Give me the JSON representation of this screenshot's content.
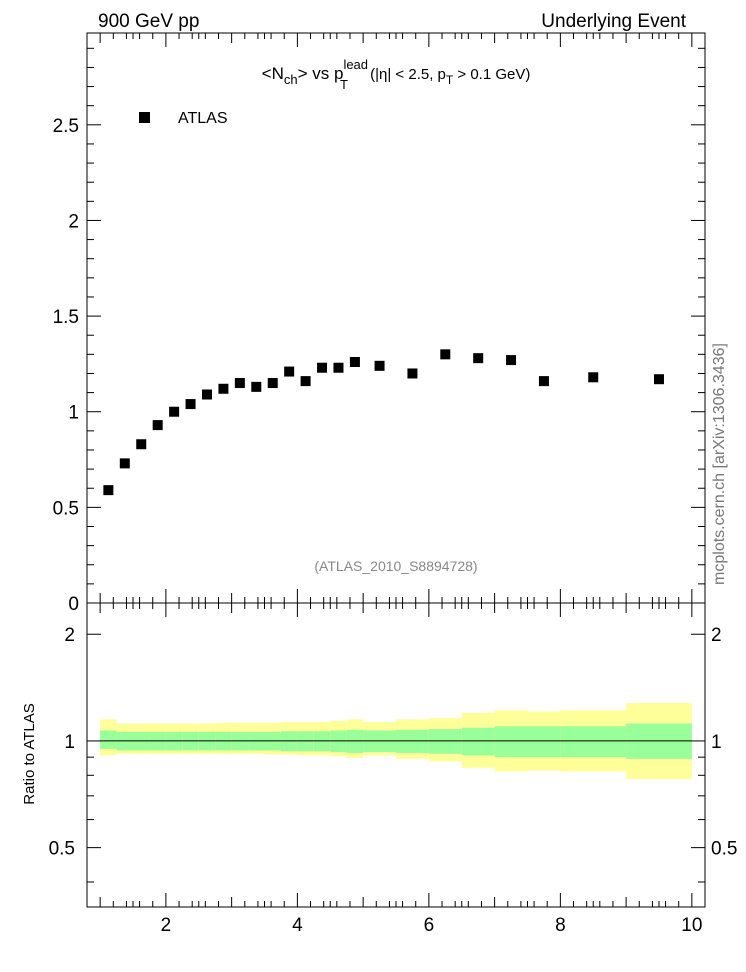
{
  "header": {
    "left": "900 GeV pp",
    "right": "Underlying Event"
  },
  "title": {
    "prefix": "<N",
    "sub1": "ch",
    "middle": "> vs p",
    "sup1": "lead",
    "sub2": "T",
    "rest1": " (|η| < 2.5, p",
    "sub3": "T",
    "rest2": " > 0.1 GeV)"
  },
  "legend": {
    "label": "ATLAS",
    "placement": "top-left"
  },
  "analysis_ref": "(ATLAS_2010_S8894728)",
  "side_label": "mcplots.cern.ch [arXiv:1306.3436]",
  "ratio_ylabel": "Ratio to ATLAS",
  "colors": {
    "marker": "#000000",
    "band_inner": "#99ff99",
    "band_outer": "#ffff99",
    "ref_text": "#888888",
    "side_text": "#777777"
  },
  "chart_data": [
    {
      "type": "scatter",
      "series": [
        {
          "name": "ATLAS",
          "points": [
            {
              "x": 1.125,
              "y": 0.59
            },
            {
              "x": 1.375,
              "y": 0.73
            },
            {
              "x": 1.625,
              "y": 0.83
            },
            {
              "x": 1.875,
              "y": 0.93
            },
            {
              "x": 2.125,
              "y": 1.0
            },
            {
              "x": 2.375,
              "y": 1.04
            },
            {
              "x": 2.625,
              "y": 1.09
            },
            {
              "x": 2.875,
              "y": 1.12
            },
            {
              "x": 3.125,
              "y": 1.15
            },
            {
              "x": 3.375,
              "y": 1.13
            },
            {
              "x": 3.625,
              "y": 1.15
            },
            {
              "x": 3.875,
              "y": 1.21
            },
            {
              "x": 4.125,
              "y": 1.16
            },
            {
              "x": 4.375,
              "y": 1.23
            },
            {
              "x": 4.625,
              "y": 1.23
            },
            {
              "x": 4.875,
              "y": 1.26
            },
            {
              "x": 5.25,
              "y": 1.24
            },
            {
              "x": 5.75,
              "y": 1.2
            },
            {
              "x": 6.25,
              "y": 1.3
            },
            {
              "x": 6.75,
              "y": 1.28
            },
            {
              "x": 7.25,
              "y": 1.27
            },
            {
              "x": 7.75,
              "y": 1.16
            },
            {
              "x": 8.5,
              "y": 1.18
            },
            {
              "x": 9.5,
              "y": 1.17
            }
          ]
        }
      ],
      "xlim": [
        0.8,
        10.2
      ],
      "ylim": [
        0,
        2.98
      ],
      "yticks": [
        "0",
        "0.5",
        "1",
        "1.5",
        "2",
        "2.5"
      ],
      "ytick_values": [
        0,
        0.5,
        1,
        1.5,
        2,
        2.5
      ],
      "grid": false
    },
    {
      "type": "area",
      "ylabel": "Ratio to ATLAS",
      "xlim": [
        0.8,
        10.2
      ],
      "ylim": [
        0.34,
        2.45
      ],
      "yscale": "log",
      "xticks": [
        "2",
        "4",
        "6",
        "8",
        "10"
      ],
      "xtick_values": [
        2,
        4,
        6,
        8,
        10
      ],
      "yticks": [
        "0.5",
        "1",
        "2"
      ],
      "ytick_values": [
        0.5,
        1,
        2
      ],
      "reference_line": 1,
      "bins": [
        {
          "x0": 1.0,
          "x1": 1.25,
          "inner": [
            0.95,
            1.07
          ],
          "outer": [
            0.91,
            1.15
          ]
        },
        {
          "x0": 1.25,
          "x1": 1.5,
          "inner": [
            0.94,
            1.06
          ],
          "outer": [
            0.92,
            1.12
          ]
        },
        {
          "x0": 1.5,
          "x1": 1.75,
          "inner": [
            0.94,
            1.06
          ],
          "outer": [
            0.92,
            1.12
          ]
        },
        {
          "x0": 1.75,
          "x1": 2.0,
          "inner": [
            0.94,
            1.06
          ],
          "outer": [
            0.92,
            1.12
          ]
        },
        {
          "x0": 2.0,
          "x1": 2.25,
          "inner": [
            0.94,
            1.06
          ],
          "outer": [
            0.92,
            1.12
          ]
        },
        {
          "x0": 2.25,
          "x1": 2.5,
          "inner": [
            0.94,
            1.06
          ],
          "outer": [
            0.92,
            1.12
          ]
        },
        {
          "x0": 2.5,
          "x1": 2.75,
          "inner": [
            0.94,
            1.06
          ],
          "outer": [
            0.92,
            1.12
          ]
        },
        {
          "x0": 2.75,
          "x1": 3.0,
          "inner": [
            0.94,
            1.06
          ],
          "outer": [
            0.92,
            1.125
          ]
        },
        {
          "x0": 3.0,
          "x1": 3.25,
          "inner": [
            0.94,
            1.06
          ],
          "outer": [
            0.92,
            1.125
          ]
        },
        {
          "x0": 3.25,
          "x1": 3.5,
          "inner": [
            0.94,
            1.06
          ],
          "outer": [
            0.92,
            1.125
          ]
        },
        {
          "x0": 3.5,
          "x1": 3.75,
          "inner": [
            0.94,
            1.06
          ],
          "outer": [
            0.915,
            1.125
          ]
        },
        {
          "x0": 3.75,
          "x1": 4.0,
          "inner": [
            0.935,
            1.065
          ],
          "outer": [
            0.915,
            1.13
          ]
        },
        {
          "x0": 4.0,
          "x1": 4.25,
          "inner": [
            0.935,
            1.065
          ],
          "outer": [
            0.91,
            1.13
          ]
        },
        {
          "x0": 4.25,
          "x1": 4.5,
          "inner": [
            0.935,
            1.065
          ],
          "outer": [
            0.91,
            1.13
          ]
        },
        {
          "x0": 4.5,
          "x1": 4.75,
          "inner": [
            0.93,
            1.07
          ],
          "outer": [
            0.905,
            1.14
          ]
        },
        {
          "x0": 4.75,
          "x1": 5.0,
          "inner": [
            0.925,
            1.075
          ],
          "outer": [
            0.895,
            1.15
          ]
        },
        {
          "x0": 5.0,
          "x1": 5.5,
          "inner": [
            0.93,
            1.07
          ],
          "outer": [
            0.91,
            1.13
          ]
        },
        {
          "x0": 5.5,
          "x1": 6.0,
          "inner": [
            0.925,
            1.075
          ],
          "outer": [
            0.89,
            1.15
          ]
        },
        {
          "x0": 6.0,
          "x1": 6.5,
          "inner": [
            0.92,
            1.08
          ],
          "outer": [
            0.875,
            1.16
          ]
        },
        {
          "x0": 6.5,
          "x1": 7.0,
          "inner": [
            0.91,
            1.09
          ],
          "outer": [
            0.84,
            1.2
          ]
        },
        {
          "x0": 7.0,
          "x1": 7.5,
          "inner": [
            0.9,
            1.1
          ],
          "outer": [
            0.82,
            1.22
          ]
        },
        {
          "x0": 7.5,
          "x1": 8.0,
          "inner": [
            0.9,
            1.1
          ],
          "outer": [
            0.825,
            1.21
          ]
        },
        {
          "x0": 8.0,
          "x1": 9.0,
          "inner": [
            0.9,
            1.1
          ],
          "outer": [
            0.82,
            1.22
          ]
        },
        {
          "x0": 9.0,
          "x1": 10.0,
          "inner": [
            0.89,
            1.12
          ],
          "outer": [
            0.78,
            1.28
          ]
        }
      ]
    }
  ]
}
